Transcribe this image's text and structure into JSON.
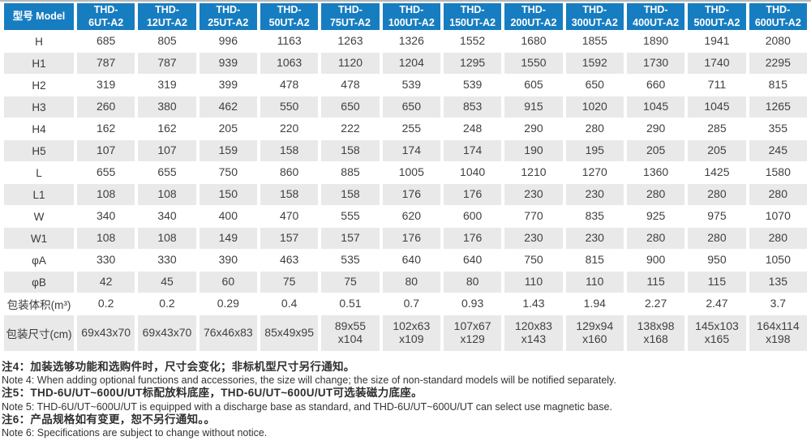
{
  "colors": {
    "header_blue": "#177dc1",
    "row_gray": "#e9e9e9",
    "value_text": "#404040"
  },
  "table": {
    "corner_label": "型号 Model",
    "columns": [
      "THD-\n6UT-A2",
      "THD-\n12UT-A2",
      "THD-\n25UT-A2",
      "THD-\n50UT-A2",
      "THD-\n75UT-A2",
      "THD-\n100UT-A2",
      "THD-\n150UT-A2",
      "THD-\n200UT-A2",
      "THD-\n300UT-A2",
      "THD-\n400UT-A2",
      "THD-\n500UT-A2",
      "THD-\n600UT-A2"
    ],
    "rows": [
      {
        "label": "H",
        "values": [
          "685",
          "805",
          "996",
          "1163",
          "1263",
          "1326",
          "1552",
          "1680",
          "1855",
          "1890",
          "1941",
          "2080"
        ]
      },
      {
        "label": "H1",
        "values": [
          "787",
          "787",
          "939",
          "1063",
          "1120",
          "1204",
          "1295",
          "1550",
          "1592",
          "1730",
          "1740",
          "2295"
        ]
      },
      {
        "label": "H2",
        "values": [
          "319",
          "319",
          "399",
          "478",
          "478",
          "539",
          "539",
          "605",
          "650",
          "660",
          "711",
          "815"
        ]
      },
      {
        "label": "H3",
        "values": [
          "260",
          "380",
          "462",
          "550",
          "650",
          "650",
          "853",
          "915",
          "1020",
          "1045",
          "1045",
          "1265"
        ]
      },
      {
        "label": "H4",
        "values": [
          "162",
          "162",
          "205",
          "220",
          "222",
          "255",
          "248",
          "290",
          "280",
          "290",
          "285",
          "355"
        ]
      },
      {
        "label": "H5",
        "values": [
          "107",
          "107",
          "159",
          "158",
          "158",
          "174",
          "174",
          "190",
          "195",
          "205",
          "205",
          "245"
        ]
      },
      {
        "label": "L",
        "values": [
          "655",
          "655",
          "750",
          "860",
          "885",
          "1005",
          "1040",
          "1210",
          "1270",
          "1360",
          "1425",
          "1580"
        ]
      },
      {
        "label": "L1",
        "values": [
          "108",
          "108",
          "150",
          "158",
          "158",
          "176",
          "176",
          "230",
          "230",
          "280",
          "280",
          "280"
        ]
      },
      {
        "label": "W",
        "values": [
          "340",
          "340",
          "400",
          "470",
          "555",
          "620",
          "600",
          "770",
          "835",
          "925",
          "975",
          "1070"
        ]
      },
      {
        "label": "W1",
        "values": [
          "108",
          "108",
          "149",
          "157",
          "157",
          "176",
          "176",
          "230",
          "230",
          "280",
          "280",
          "280"
        ]
      },
      {
        "label": "φA",
        "values": [
          "330",
          "330",
          "390",
          "463",
          "535",
          "640",
          "640",
          "750",
          "815",
          "900",
          "950",
          "1050"
        ]
      },
      {
        "label": "φB",
        "values": [
          "42",
          "45",
          "60",
          "75",
          "75",
          "80",
          "80",
          "110",
          "110",
          "115",
          "115",
          "135"
        ]
      },
      {
        "label": "包装体积(m³)",
        "values": [
          "0.2",
          "0.2",
          "0.29",
          "0.4",
          "0.51",
          "0.7",
          "0.93",
          "1.43",
          "1.94",
          "2.27",
          "2.47",
          "3.7"
        ]
      },
      {
        "label": "包装尺寸(cm)",
        "values": [
          "69x43x70",
          "69x43x70",
          "76x46x83",
          "85x49x95",
          "89x55\nx104",
          "102x63\nx109",
          "107x67\nx129",
          "120x83\nx143",
          "129x94\nx160",
          "138x98\nx168",
          "145x103\nx165",
          "164x114\nx198"
        ]
      }
    ]
  },
  "notes": [
    {
      "zh": "注4：加装选够功能和选购件时，尺寸会变化；非标机型尺寸另行通知。",
      "en": "Note 4: When adding optional functions and accessories, the size will change; the size of non-standard models will be notified separately."
    },
    {
      "zh": "注5：THD-6U/UT~600U/UT标配放料底座，THD-6U/UT~600U/UT可选装磁力底座。",
      "en": "Note 5: THD-6U/UT~600U/UT is equipped with a discharge base as standard, and THD-6U/UT~600U/UT can select use magnetic base."
    },
    {
      "zh": "注6：产品规格如有变更，恕不另行通知。。",
      "en": "Note 6: Specifications are subject to change without notice."
    }
  ]
}
